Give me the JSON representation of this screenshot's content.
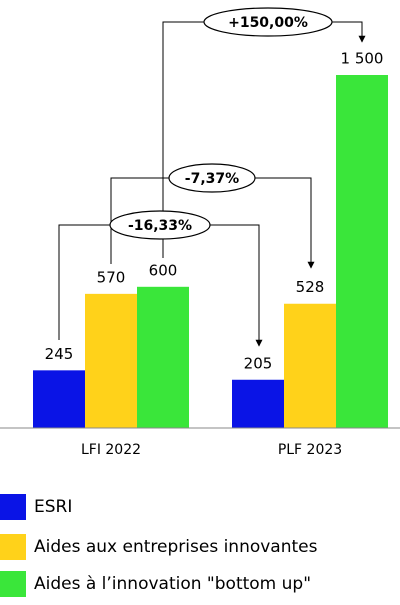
{
  "chart_data": {
    "type": "bar",
    "categories": [
      "LFI 2022",
      "PLF 2023"
    ],
    "series": [
      {
        "name": "ESRI",
        "color": "#0a14e6",
        "values": [
          245,
          205
        ],
        "value_labels": [
          "245",
          "205"
        ]
      },
      {
        "name": "Aides aux entreprises innovantes",
        "color": "#ffd21a",
        "values": [
          570,
          528
        ],
        "value_labels": [
          "570",
          "528"
        ]
      },
      {
        "name": "Aides à l’innovation \"bottom up\"",
        "color": "#3ae63a",
        "values": [
          600,
          1500
        ],
        "value_labels": [
          "600",
          "1 500"
        ]
      }
    ],
    "annotations": [
      {
        "label": "+150,00%"
      },
      {
        "label": "-7,37%"
      },
      {
        "label": "-16,33%"
      }
    ],
    "legend": "bottom-left"
  }
}
